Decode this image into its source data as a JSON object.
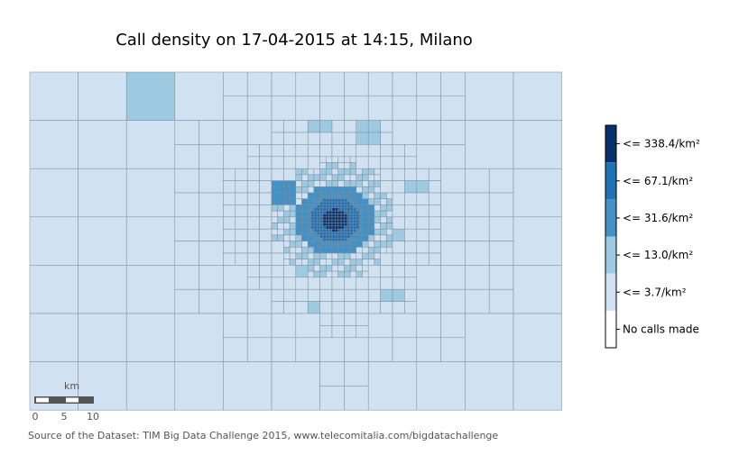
{
  "chart_data": {
    "type": "heatmap",
    "title": "Call density on 17-04-2015 at 14:15, Milano",
    "unit": "km²",
    "legend": {
      "placement": "right",
      "entries": [
        {
          "label": "<= 338.4/km²",
          "max": 338.4,
          "color": "#08306b"
        },
        {
          "label": "<= 67.1/km²",
          "max": 67.1,
          "color": "#2171b5"
        },
        {
          "label": "<= 31.6/km²",
          "max": 31.6,
          "color": "#4292c6"
        },
        {
          "label": "<= 13.0/km²",
          "max": 13.0,
          "color": "#9ecae1"
        },
        {
          "label": "<= 3.7/km²",
          "max": 3.7,
          "color": "#d0e1f2"
        },
        {
          "label": "No calls made",
          "max": 0,
          "color": "#ffffff"
        }
      ]
    },
    "scale_bar": {
      "label": "km",
      "ticks": [
        "0",
        "5",
        "10"
      ]
    },
    "grid_lines": true
  },
  "source": "Source of the Dataset: TIM Big Data Challenge 2015, www.telecomitalia.com/bigdatachallenge"
}
